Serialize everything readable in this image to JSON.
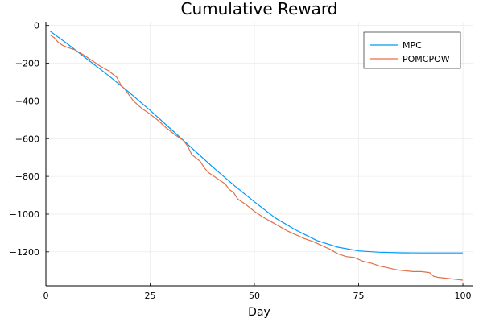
{
  "chart_data": {
    "type": "line",
    "title": "Cumulative Reward",
    "xlabel": "Day",
    "ylabel": "",
    "xlim": [
      0,
      102.5
    ],
    "ylim": [
      -1380,
      20
    ],
    "xticks": [
      0,
      25,
      50,
      75,
      100
    ],
    "yticks": [
      0,
      -200,
      -400,
      -600,
      -800,
      -1000,
      -1200
    ],
    "grid": true,
    "legend_position": "top-right",
    "series": [
      {
        "name": "MPC",
        "color": "#009AFA",
        "x": [
          1,
          5,
          10,
          15,
          20,
          25,
          30,
          35,
          40,
          45,
          50,
          55,
          60,
          65,
          70,
          75,
          80,
          85,
          90,
          95,
          100
        ],
        "y": [
          -30,
          -95,
          -180,
          -265,
          -355,
          -450,
          -550,
          -650,
          -750,
          -845,
          -935,
          -1020,
          -1085,
          -1140,
          -1175,
          -1195,
          -1202,
          -1205,
          -1206,
          -1206,
          -1206
        ]
      },
      {
        "name": "POMCPOW",
        "color": "#E36F47",
        "x": [
          1,
          2,
          3,
          4,
          5,
          7,
          9,
          11,
          13,
          15,
          17,
          18,
          19,
          20,
          21,
          22,
          23,
          25,
          27,
          29,
          31,
          33,
          34,
          35,
          37,
          38,
          39,
          41,
          43,
          44,
          45,
          46,
          48,
          50,
          52,
          54,
          56,
          58,
          60,
          62,
          64,
          66,
          68,
          70,
          72,
          74,
          76,
          78,
          80,
          82,
          84,
          86,
          88,
          90,
          92,
          93,
          94,
          96,
          98,
          100
        ],
        "y": [
          -50,
          -65,
          -90,
          -105,
          -115,
          -130,
          -155,
          -185,
          -215,
          -240,
          -275,
          -315,
          -340,
          -370,
          -400,
          -420,
          -440,
          -470,
          -505,
          -545,
          -580,
          -610,
          -640,
          -685,
          -720,
          -755,
          -780,
          -810,
          -840,
          -870,
          -885,
          -920,
          -950,
          -985,
          -1015,
          -1040,
          -1065,
          -1090,
          -1110,
          -1130,
          -1145,
          -1165,
          -1185,
          -1210,
          -1225,
          -1230,
          -1250,
          -1260,
          -1275,
          -1285,
          -1295,
          -1300,
          -1305,
          -1305,
          -1310,
          -1330,
          -1335,
          -1340,
          -1345,
          -1350
        ]
      }
    ]
  }
}
